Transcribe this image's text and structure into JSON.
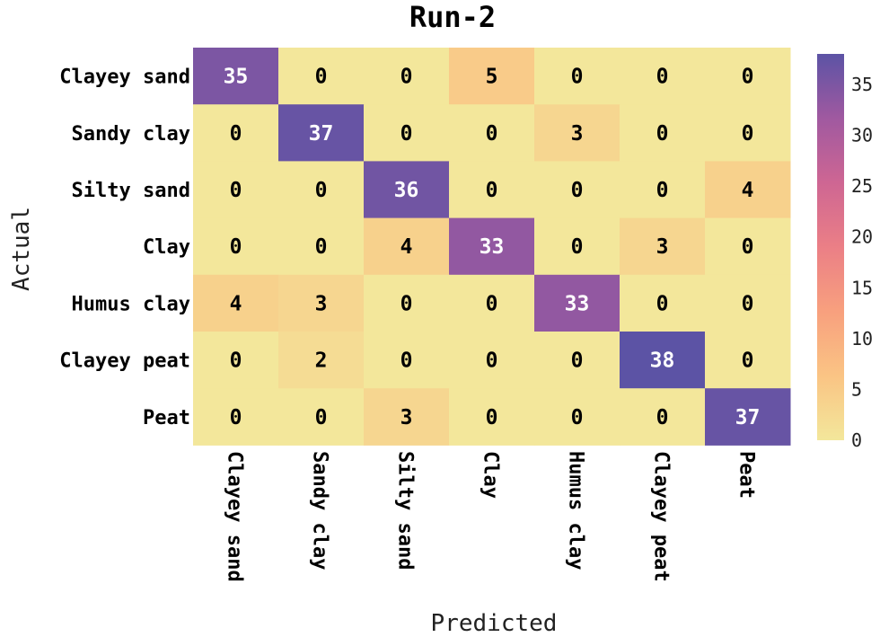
{
  "chart_data": {
    "type": "heatmap",
    "title": "Run-2",
    "xlabel": "Predicted",
    "ylabel": "Actual",
    "x_categories": [
      "Clayey sand",
      "Sandy clay",
      "Silty sand",
      "Clay",
      "Humus clay",
      "Clayey peat",
      "Peat"
    ],
    "y_categories": [
      "Clayey sand",
      "Sandy clay",
      "Silty sand",
      "Clay",
      "Humus clay",
      "Clayey peat",
      "Peat"
    ],
    "values": [
      [
        35,
        0,
        0,
        5,
        0,
        0,
        0
      ],
      [
        0,
        37,
        0,
        0,
        3,
        0,
        0
      ],
      [
        0,
        0,
        36,
        0,
        0,
        0,
        4
      ],
      [
        0,
        0,
        4,
        33,
        0,
        3,
        0
      ],
      [
        4,
        3,
        0,
        0,
        33,
        0,
        0
      ],
      [
        0,
        2,
        0,
        0,
        0,
        38,
        0
      ],
      [
        0,
        0,
        3,
        0,
        0,
        0,
        37
      ]
    ],
    "colorbar": {
      "min": 0,
      "max": 38,
      "ticks": [
        0,
        5,
        10,
        15,
        20,
        25,
        30,
        35
      ],
      "colormap": [
        "#f3e79b",
        "#fac484",
        "#f8a07e",
        "#eb7f86",
        "#ce6693",
        "#a059a0",
        "#5c53a5"
      ]
    },
    "grid": false
  }
}
